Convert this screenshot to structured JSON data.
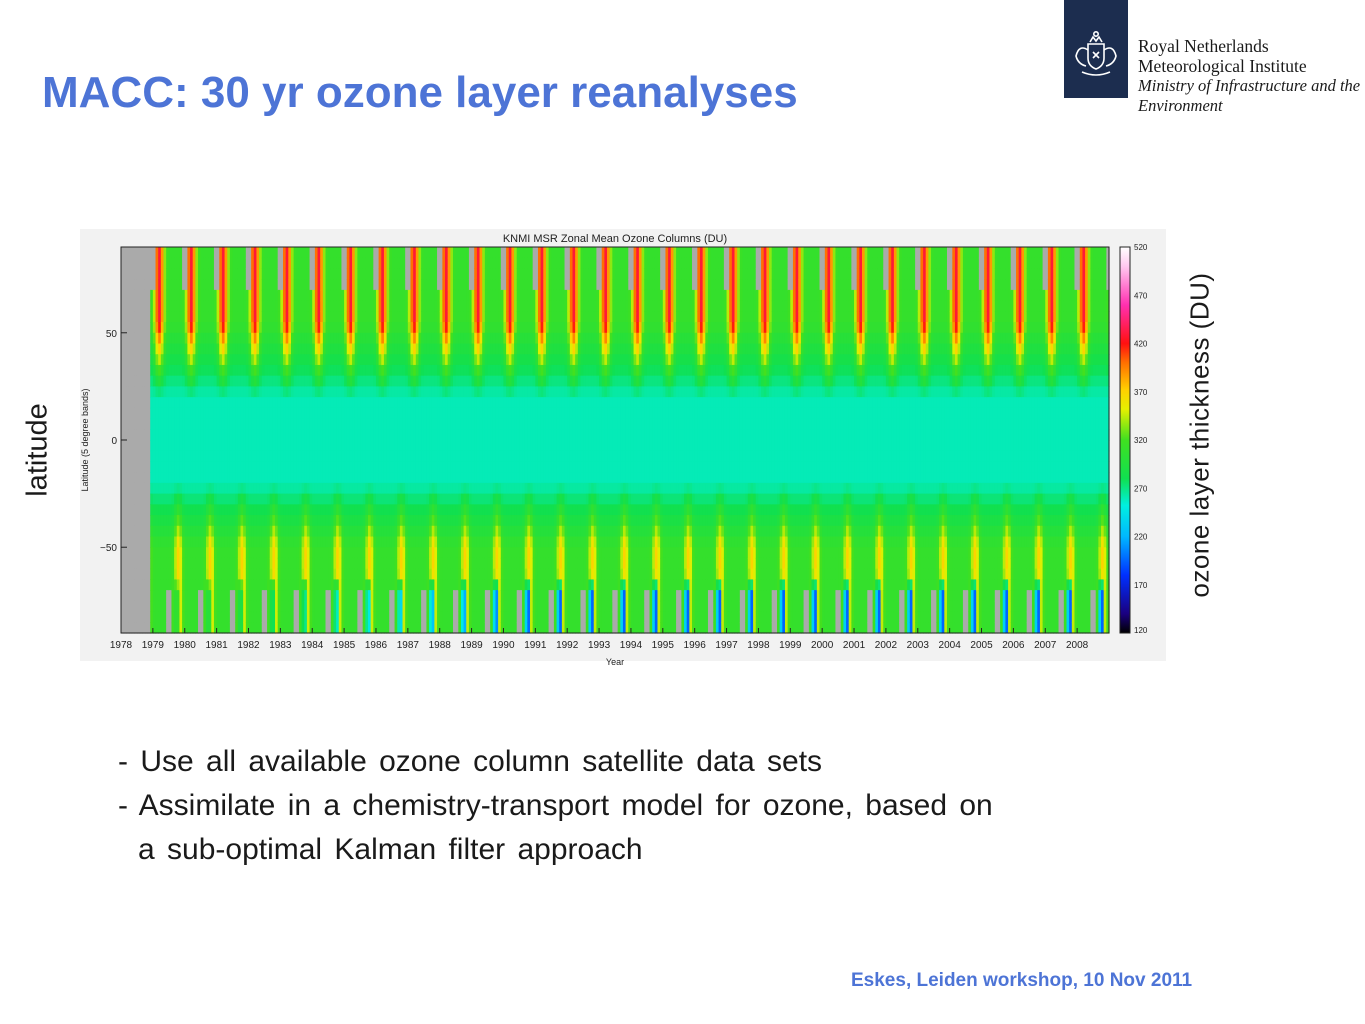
{
  "slide": {
    "title": "MACC: 30 yr ozone layer reanalyses",
    "left_label": "latitude",
    "right_label": "ozone layer thickness (DU)",
    "bullets": [
      "- Use all available ozone column satellite data sets",
      "- Assimilate in a chemistry-transport model for ozone, based on",
      "a sub-optimal Kalman filter approach"
    ],
    "footer": "Eskes, Leiden workshop, 10 Nov 2011"
  },
  "logo": {
    "lines": [
      "Royal Netherlands",
      "Meteorological Institute",
      "Ministry of Infrastructure and the",
      "Environment"
    ],
    "emblem": "crest-icon"
  },
  "chart_data": {
    "type": "heatmap",
    "title": "KNMI MSR Zonal Mean Ozone Columns (DU)",
    "xlabel": "Year",
    "ylabel": "Latitude (5 degree bands)",
    "x_ticks": [
      "1978",
      "1979",
      "1980",
      "1981",
      "1982",
      "1983",
      "1984",
      "1985",
      "1986",
      "1987",
      "1988",
      "1989",
      "1990",
      "1991",
      "1992",
      "1993",
      "1994",
      "1995",
      "1996",
      "1997",
      "1998",
      "1999",
      "2000",
      "2001",
      "2002",
      "2003",
      "2004",
      "2005",
      "2006",
      "2007",
      "2008"
    ],
    "xlim": [
      1978,
      2009
    ],
    "y_ticks": [
      50,
      0,
      -50
    ],
    "y_tick_labels": [
      "50",
      "0",
      "−50"
    ],
    "ylim": [
      -90,
      90
    ],
    "colorbar": {
      "ticks": [
        520,
        470,
        420,
        370,
        320,
        270,
        220,
        170,
        120
      ],
      "range": [
        120,
        520
      ],
      "unit": "DU"
    },
    "missing_data_color": "#aaaaaa",
    "typical_values_du": {
      "tropics": 260,
      "north_midlatitudes_winter_spring": 430,
      "north_midlatitudes_summer_autumn": 310,
      "south_midlatitudes_spring": 370,
      "antarctic_ozone_hole_minimum": 140
    }
  }
}
